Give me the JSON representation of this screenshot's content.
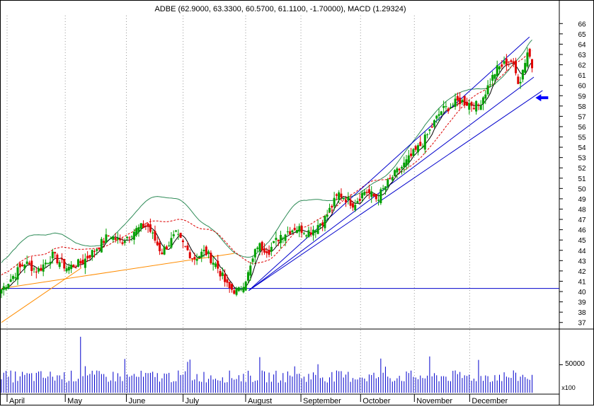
{
  "chart_data": {
    "type": "candlestick",
    "title": "ADBE (62.9000, 63.3300, 60.5700, 61.1100, -1.70000), MACD (1.29324)",
    "price_axis": {
      "min": 36.5,
      "max": 66.5,
      "ticks": [
        37,
        38,
        39,
        40,
        41,
        42,
        43,
        44,
        45,
        46,
        47,
        48,
        49,
        50,
        51,
        52,
        53,
        54,
        55,
        56,
        57,
        58,
        59,
        60,
        61,
        62,
        63,
        64,
        65,
        66
      ]
    },
    "volume_axis": {
      "label": "50000",
      "multiplier": "x100",
      "value": 50000,
      "max": 110000
    },
    "months": [
      "April",
      "May",
      "June",
      "July",
      "August",
      "September",
      "October",
      "November",
      "December"
    ],
    "colors": {
      "up": "#00a000",
      "down": "#e00000",
      "ma": "#000000",
      "band": "#2e8b57",
      "dashed": "#dd0000",
      "channel": "#0000cc",
      "support": "#ff8c00",
      "arrow": "#0000ff"
    },
    "close_series": [
      {
        "day": 0,
        "close": 40.2
      },
      {
        "day": 8,
        "close": 41.5
      },
      {
        "day": 16,
        "close": 42.8
      },
      {
        "day": 25,
        "close": 42.0
      },
      {
        "day": 35,
        "close": 43.5
      },
      {
        "day": 45,
        "close": 42.3
      },
      {
        "day": 55,
        "close": 42.8
      },
      {
        "day": 64,
        "close": 44.0
      },
      {
        "day": 74,
        "close": 45.5
      },
      {
        "day": 82,
        "close": 44.8
      },
      {
        "day": 90,
        "close": 45.8
      },
      {
        "day": 100,
        "close": 46.5
      },
      {
        "day": 110,
        "close": 43.8
      },
      {
        "day": 120,
        "close": 45.5
      },
      {
        "day": 132,
        "close": 43.2
      },
      {
        "day": 140,
        "close": 43.9
      },
      {
        "day": 148,
        "close": 42.5
      },
      {
        "day": 156,
        "close": 40.3
      },
      {
        "day": 163,
        "close": 40.0
      },
      {
        "day": 170,
        "close": 41.8
      },
      {
        "day": 176,
        "close": 44.5
      },
      {
        "day": 184,
        "close": 44.0
      },
      {
        "day": 192,
        "close": 45.5
      },
      {
        "day": 202,
        "close": 46.2
      },
      {
        "day": 212,
        "close": 45.8
      },
      {
        "day": 222,
        "close": 47.0
      },
      {
        "day": 232,
        "close": 49.5
      },
      {
        "day": 242,
        "close": 48.5
      },
      {
        "day": 250,
        "close": 49.8
      },
      {
        "day": 258,
        "close": 49.0
      },
      {
        "day": 268,
        "close": 51.0
      },
      {
        "day": 278,
        "close": 52.5
      },
      {
        "day": 290,
        "close": 54.5
      },
      {
        "day": 302,
        "close": 57.5
      },
      {
        "day": 315,
        "close": 58.5
      },
      {
        "day": 328,
        "close": 58.0
      },
      {
        "day": 340,
        "close": 61.5
      },
      {
        "day": 350,
        "close": 62.5
      },
      {
        "day": 356,
        "close": 60.2
      },
      {
        "day": 362,
        "close": 63.5
      },
      {
        "day": 366,
        "close": 61.1
      }
    ],
    "day_max": 366,
    "channel_lines": [
      {
        "from": [
          170,
          40.1
        ],
        "to": [
          363,
          64.7
        ]
      },
      {
        "from": [
          170,
          40.1
        ],
        "to": [
          366,
          60.8
        ]
      },
      {
        "from": [
          170,
          40.1
        ],
        "to": [
          372,
          59.5
        ]
      }
    ],
    "horizontal_line": 40.3,
    "support_lines": [
      {
        "from": [
          0,
          40.3
        ],
        "to": [
          160,
          43.7
        ]
      },
      {
        "from": [
          0,
          37
        ],
        "to": [
          55,
          42.3
        ]
      }
    ],
    "arrow": {
      "day": 372,
      "value": 58.8,
      "direction": "left"
    }
  }
}
